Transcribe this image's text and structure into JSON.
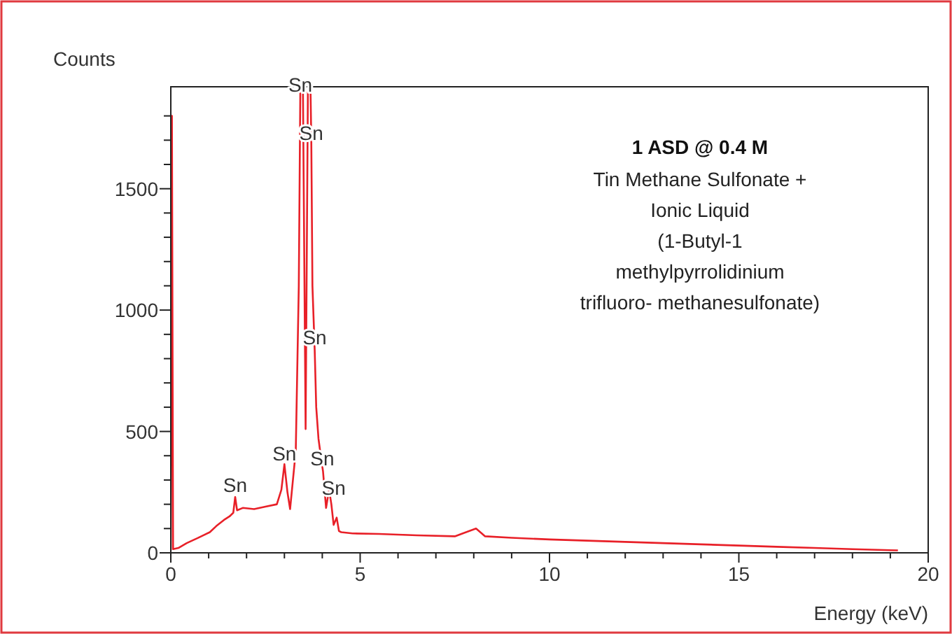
{
  "chart_data": {
    "type": "line",
    "title": "1 ASD @ 0.4 M",
    "subtitle": "Tin Methane Sulfonate +\nIonic Liquid\n(1-Butyl-1\nmethylpyrrolidinium\ntrifluoro- methanesulfonate)",
    "xlabel": "Energy (keV)",
    "ylabel": "Counts",
    "x": [
      0,
      0.03,
      0.06,
      0.2,
      0.42,
      0.7,
      1.03,
      1.2,
      1.4,
      1.55,
      1.65,
      1.7,
      1.75,
      1.9,
      2.2,
      2.5,
      2.8,
      2.92,
      3.0,
      3.08,
      3.15,
      3.3,
      3.38,
      3.42,
      3.45,
      3.49,
      3.56,
      3.62,
      3.65,
      3.69,
      3.71,
      3.74,
      3.8,
      3.84,
      3.9,
      3.96,
      4.02,
      4.1,
      4.18,
      4.24,
      4.3,
      4.38,
      4.44,
      4.5,
      4.8,
      5.5,
      6.5,
      7.5,
      8.06,
      8.3,
      9,
      10,
      11,
      12,
      13,
      14,
      15,
      16,
      17,
      18,
      19.2
    ],
    "series": [
      {
        "color": "#e82028",
        "values": [
          10,
          1800,
          15,
          20,
          40,
          60,
          85,
          110,
          135,
          150,
          165,
          230,
          175,
          185,
          180,
          190,
          200,
          260,
          365,
          250,
          180,
          420,
          1100,
          1900,
          null,
          1900,
          510,
          1900,
          null,
          1900,
          1700,
          1100,
          835,
          600,
          470,
          400,
          335,
          185,
          260,
          200,
          115,
          145,
          90,
          85,
          80,
          78,
          72,
          68,
          100,
          68,
          62,
          55,
          50,
          45,
          40,
          35,
          30,
          25,
          20,
          15,
          10
        ]
      }
    ],
    "annotations": [
      {
        "text": "Sn",
        "x": 1.7,
        "y": 250
      },
      {
        "text": "Sn",
        "x": 3.0,
        "y": 380
      },
      {
        "text": "Sn",
        "x": 3.42,
        "y": 1900
      },
      {
        "text": "Sn",
        "x": 3.71,
        "y": 1700
      },
      {
        "text": "Sn",
        "x": 3.8,
        "y": 860
      },
      {
        "text": "Sn",
        "x": 4.0,
        "y": 360
      },
      {
        "text": "Sn",
        "x": 4.3,
        "y": 240
      }
    ],
    "xlim": [
      0,
      20
    ],
    "ylim": [
      0,
      1920
    ],
    "xticks": [
      0,
      {
        "value": 1,
        "label": null
      },
      {
        "value": 2,
        "label": null
      },
      {
        "value": 3,
        "label": null
      },
      {
        "value": 4,
        "label": null
      },
      5,
      {
        "value": 6,
        "label": null
      },
      {
        "value": 7,
        "label": null
      },
      {
        "value": 8,
        "label": null
      },
      {
        "value": 9,
        "label": null
      },
      10,
      {
        "value": 11,
        "label": null
      },
      {
        "value": 12,
        "label": null
      },
      {
        "value": 13,
        "label": null
      },
      {
        "value": 14,
        "label": null
      },
      15,
      {
        "value": 16,
        "label": null
      },
      {
        "value": 17,
        "label": null
      },
      {
        "value": 18,
        "label": null
      },
      {
        "value": 19,
        "label": null
      },
      20
    ],
    "yticks": [
      0,
      {
        "value": 100,
        "label": null
      },
      {
        "value": 200,
        "label": null
      },
      {
        "value": 300,
        "label": null
      },
      {
        "value": 400,
        "label": null
      },
      500,
      {
        "value": 600,
        "label": null
      },
      {
        "value": 700,
        "label": null
      },
      {
        "value": 800,
        "label": null
      },
      {
        "value": 900,
        "label": null
      },
      1000,
      {
        "value": 1100,
        "label": null
      },
      {
        "value": 1200,
        "label": null
      },
      {
        "value": 1300,
        "label": null
      },
      {
        "value": 1400,
        "label": null
      },
      1500,
      {
        "value": 1600,
        "label": null
      },
      {
        "value": 1700,
        "label": null
      },
      {
        "value": 1800,
        "label": null
      }
    ],
    "grid": false,
    "marker": "none",
    "line_style": "solid"
  }
}
